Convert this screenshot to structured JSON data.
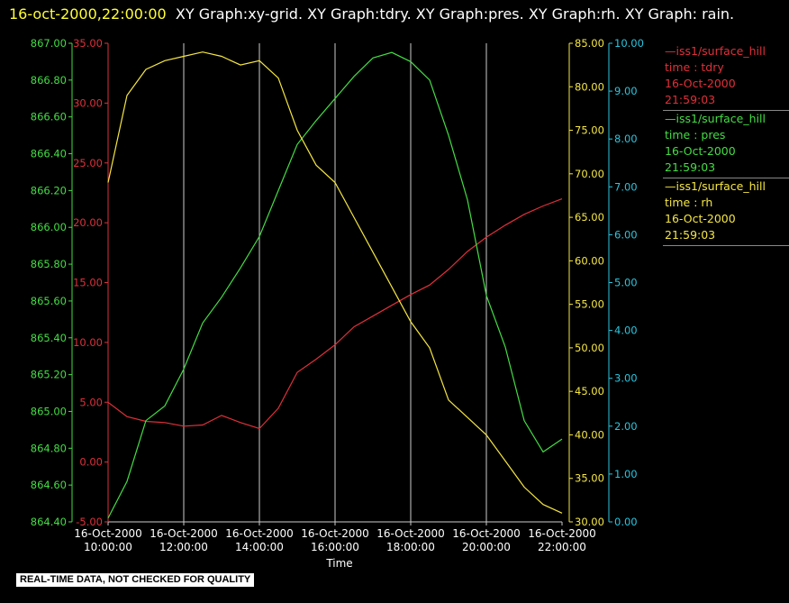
{
  "header": {
    "timestamp": "16-oct-2000,22:00:00",
    "graphs": "XY Graph:xy-grid.  XY Graph:tdry.  XY Graph:pres.  XY Graph:rh.  XY Graph: rain."
  },
  "footer": {
    "quality_note": "REAL-TIME DATA, NOT CHECKED FOR QUALITY"
  },
  "legend": [
    {
      "station": "iss1/surface_hill",
      "var": "time : tdry",
      "date": "16-Oct-2000",
      "time": "21:59:03",
      "color": "#e0303a"
    },
    {
      "station": "iss1/surface_hill",
      "var": "time : pres",
      "date": "16-Oct-2000",
      "time": "21:59:03",
      "color": "#44dd44"
    },
    {
      "station": "iss1/surface_hill",
      "var": "time : rh",
      "date": "16-Oct-2000",
      "time": "21:59:03",
      "color": "#f5e642"
    }
  ],
  "chart_data": {
    "type": "line",
    "xlabel": "Time",
    "x_ticks": [
      {
        "date": "16-Oct-2000",
        "time": "10:00:00"
      },
      {
        "date": "16-Oct-2000",
        "time": "12:00:00"
      },
      {
        "date": "16-Oct-2000",
        "time": "14:00:00"
      },
      {
        "date": "16-Oct-2000",
        "time": "16:00:00"
      },
      {
        "date": "16-Oct-2000",
        "time": "18:00:00"
      },
      {
        "date": "16-Oct-2000",
        "time": "20:00:00"
      },
      {
        "date": "16-Oct-2000",
        "time": "22:00:00"
      }
    ],
    "xlim": [
      "16-Oct-2000 10:00:00",
      "16-Oct-2000 22:00:00"
    ],
    "grid": "vertical lines at each time tick",
    "axes": {
      "tdry": {
        "ylim": [
          -5,
          35
        ],
        "ticks": [
          "-5.00",
          "0.00",
          "5.00",
          "10.00",
          "15.00",
          "20.00",
          "25.00",
          "30.00",
          "35.00"
        ],
        "color": "#e0303a",
        "side": "left-outer"
      },
      "pres": {
        "ylim": [
          864.4,
          867.0
        ],
        "ticks": [
          "864.40",
          "864.60",
          "864.80",
          "865.00",
          "865.20",
          "865.40",
          "865.60",
          "865.80",
          "866.00",
          "866.20",
          "866.40",
          "866.60",
          "866.80",
          "867.00"
        ],
        "color": "#44dd44",
        "side": "left-inner"
      },
      "rh": {
        "ylim": [
          30,
          85
        ],
        "ticks": [
          "30.00",
          "35.00",
          "40.00",
          "45.00",
          "50.00",
          "55.00",
          "60.00",
          "65.00",
          "70.00",
          "75.00",
          "80.00",
          "85.00"
        ],
        "color": "#f5e642",
        "side": "right-inner"
      },
      "rain": {
        "ylim": [
          0,
          10
        ],
        "ticks": [
          "0.00",
          "1.00",
          "2.00",
          "3.00",
          "4.00",
          "5.00",
          "6.00",
          "7.00",
          "8.00",
          "9.00",
          "10.00"
        ],
        "color": "#29c6e0",
        "side": "right-outer"
      }
    },
    "series": [
      {
        "name": "time : tdry",
        "axis": "tdry",
        "color": "#e0303a",
        "x": [
          "10:00",
          "10:30",
          "11:00",
          "11:30",
          "12:00",
          "12:30",
          "13:00",
          "13:30",
          "14:00",
          "14:30",
          "15:00",
          "15:30",
          "16:00",
          "16:30",
          "17:00",
          "17:30",
          "18:00",
          "18:30",
          "19:00",
          "19:30",
          "20:00",
          "20:30",
          "21:00",
          "21:30",
          "22:00"
        ],
        "values": [
          5.0,
          3.8,
          3.4,
          3.3,
          3.0,
          3.1,
          3.9,
          3.3,
          2.8,
          4.5,
          7.5,
          8.6,
          9.8,
          11.3,
          12.2,
          13.1,
          14.0,
          14.8,
          16.1,
          17.6,
          18.8,
          19.8,
          20.7,
          21.4,
          22.0
        ]
      },
      {
        "name": "time : pres",
        "axis": "pres",
        "color": "#44dd44",
        "x": [
          "10:00",
          "10:30",
          "11:00",
          "11:30",
          "12:00",
          "12:30",
          "13:00",
          "13:30",
          "14:00",
          "14:30",
          "15:00",
          "15:30",
          "16:00",
          "16:30",
          "17:00",
          "17:30",
          "18:00",
          "18:30",
          "19:00",
          "19:30",
          "20:00",
          "20:30",
          "21:00",
          "21:30",
          "22:00"
        ],
        "values": [
          864.42,
          864.62,
          864.95,
          865.03,
          865.23,
          865.48,
          865.62,
          865.78,
          865.95,
          866.2,
          866.45,
          866.58,
          866.7,
          866.82,
          866.92,
          866.95,
          866.9,
          866.8,
          866.5,
          866.15,
          865.63,
          865.35,
          864.95,
          864.78,
          864.85
        ]
      },
      {
        "name": "time : rh",
        "axis": "rh",
        "color": "#f5e642",
        "x": [
          "10:00",
          "10:30",
          "11:00",
          "11:30",
          "12:00",
          "12:30",
          "13:00",
          "13:30",
          "14:00",
          "14:30",
          "15:00",
          "15:30",
          "16:00",
          "16:30",
          "17:00",
          "17:30",
          "18:00",
          "18:30",
          "19:00",
          "19:30",
          "20:00",
          "20:30",
          "21:00",
          "21:30",
          "22:00"
        ],
        "values": [
          69.0,
          79.0,
          82.0,
          83.0,
          83.5,
          84.0,
          83.5,
          82.5,
          83.0,
          81.0,
          75.0,
          71.0,
          69.0,
          65.0,
          61.0,
          57.0,
          53.0,
          50.0,
          44.0,
          42.0,
          40.0,
          37.0,
          34.0,
          32.0,
          31.0
        ]
      }
    ]
  }
}
